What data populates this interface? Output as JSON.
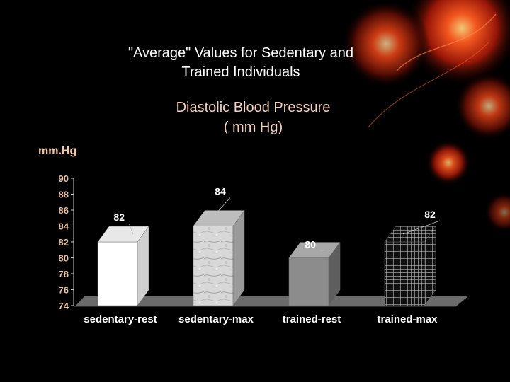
{
  "slide": {
    "title_lines": [
      "\"Average\" Values for Sedentary and",
      "Trained Individuals"
    ],
    "subtitle_lines": [
      "Diastolic Blood Pressure",
      "( mm Hg)"
    ],
    "accent_colors": [
      "#ff3b1f",
      "#e0431a",
      "#8a1a0a"
    ]
  },
  "chart_data": {
    "type": "bar",
    "title": "Diastolic Blood Pressure ( mm Hg)",
    "ylabel": "mm.Hg",
    "xlabel": "",
    "categories": [
      "sedentary-rest",
      "sedentary-max",
      "trained-rest",
      "trained-max"
    ],
    "values": [
      82,
      84,
      80,
      82
    ],
    "data_labels": [
      "82",
      "84",
      "80",
      "82"
    ],
    "ylim": [
      74,
      90
    ],
    "yticks": [
      "90",
      "88",
      "86",
      "84",
      "82",
      "80",
      "78",
      "76",
      "74"
    ],
    "grid": false,
    "legend": "none",
    "bar_fills": [
      "white",
      "marble",
      "gray",
      "grid-pattern"
    ],
    "colors": {
      "bar_white": "#ffffff",
      "bar_gray": "#8c8c8c",
      "floor": "#6a6a6a",
      "axis": "#cccccc"
    }
  }
}
